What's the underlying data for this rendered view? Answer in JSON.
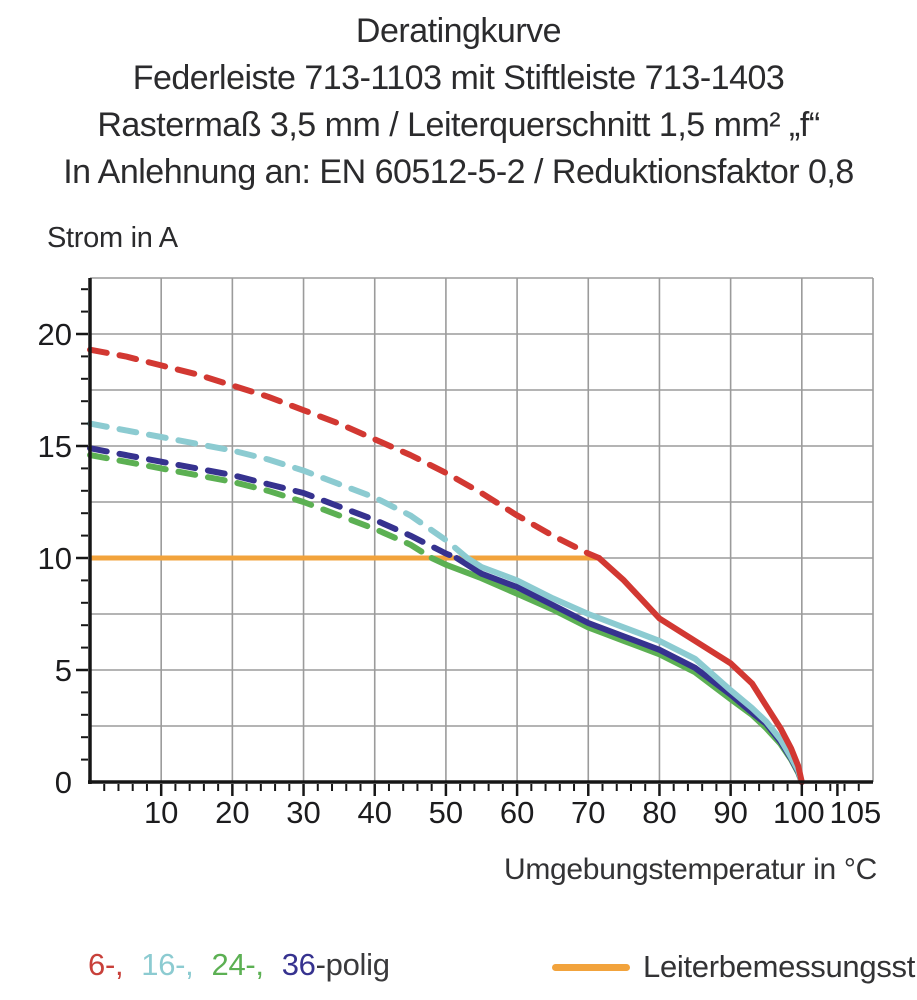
{
  "chart_data": {
    "type": "line",
    "title_lines": [
      "Deratingkurve",
      "Federleiste 713-1103 mit Stiftleiste 713-1403",
      "Rastermaß 3,5 mm / Leiterquerschnitt 1,5 mm² „f“",
      "In Anlehnung an: EN 60512-5-2 / Reduktionsfaktor 0,8"
    ],
    "x_axis": {
      "label": "Umgebungstemperatur in °C",
      "min": 0,
      "max": 110,
      "grid_step": 10,
      "minor_tick_step": 2,
      "major_tick_values": [
        10,
        20,
        30,
        40,
        50,
        60,
        70,
        80,
        90,
        100,
        105
      ],
      "tick_labels": [
        {
          "value": 10,
          "text": "10",
          "dx": 0
        },
        {
          "value": 20,
          "text": "20",
          "dx": 0
        },
        {
          "value": 30,
          "text": "30",
          "dx": 0
        },
        {
          "value": 40,
          "text": "40",
          "dx": 0
        },
        {
          "value": 50,
          "text": "50",
          "dx": 0
        },
        {
          "value": 60,
          "text": "60",
          "dx": 0
        },
        {
          "value": 70,
          "text": "70",
          "dx": 0
        },
        {
          "value": 80,
          "text": "80",
          "dx": 0
        },
        {
          "value": 90,
          "text": "90",
          "dx": 0
        },
        {
          "value": 100,
          "text": "100",
          "dx": -3
        },
        {
          "value": 105,
          "text": "105",
          "dx": 18
        }
      ]
    },
    "y_axis": {
      "label": "Strom in A",
      "min": 0,
      "max": 22.5,
      "grid_step": 2.5,
      "minor_tick_step": 1,
      "major_tick_values": [
        5,
        10,
        15,
        20
      ],
      "tick_labels": [
        {
          "value": 0,
          "text": "0"
        },
        {
          "value": 5,
          "text": "5"
        },
        {
          "value": 10,
          "text": "10"
        },
        {
          "value": 15,
          "text": "15"
        },
        {
          "value": 20,
          "text": "20"
        }
      ]
    },
    "ref_line": {
      "label": "Leiterbemessungsstrom",
      "color": "#F2A33C",
      "y": 10,
      "x_start": 0,
      "x_end": 71.5
    },
    "series": [
      {
        "name": "6-polig",
        "color": "#D23832",
        "dashed": [
          [
            0,
            19.3
          ],
          [
            5,
            19.0
          ],
          [
            10,
            18.6
          ],
          [
            15,
            18.2
          ],
          [
            20,
            17.7
          ],
          [
            25,
            17.2
          ],
          [
            30,
            16.6
          ],
          [
            35,
            16.0
          ],
          [
            40,
            15.3
          ],
          [
            45,
            14.6
          ],
          [
            50,
            13.8
          ],
          [
            55,
            12.9
          ],
          [
            60,
            11.9
          ],
          [
            65,
            11.0
          ],
          [
            70,
            10.2
          ],
          [
            71.5,
            10
          ]
        ],
        "solid": [
          [
            71.5,
            10
          ],
          [
            75,
            9.0
          ],
          [
            80,
            7.3
          ],
          [
            85,
            6.3
          ],
          [
            90,
            5.3
          ],
          [
            93,
            4.4
          ],
          [
            95,
            3.4
          ],
          [
            97,
            2.4
          ],
          [
            98.5,
            1.5
          ],
          [
            99.5,
            0.7
          ],
          [
            100,
            0
          ]
        ]
      },
      {
        "name": "16-polig",
        "color": "#8CCBD1",
        "dashed": [
          [
            0,
            16.0
          ],
          [
            5,
            15.7
          ],
          [
            10,
            15.4
          ],
          [
            15,
            15.1
          ],
          [
            20,
            14.8
          ],
          [
            25,
            14.4
          ],
          [
            30,
            13.9
          ],
          [
            35,
            13.3
          ],
          [
            40,
            12.7
          ],
          [
            45,
            11.9
          ],
          [
            50,
            10.8
          ],
          [
            53,
            10
          ]
        ],
        "solid": [
          [
            53,
            10
          ],
          [
            55,
            9.6
          ],
          [
            60,
            9.0
          ],
          [
            65,
            8.2
          ],
          [
            70,
            7.5
          ],
          [
            75,
            6.9
          ],
          [
            80,
            6.3
          ],
          [
            85,
            5.5
          ],
          [
            90,
            4.1
          ],
          [
            93,
            3.3
          ],
          [
            95,
            2.7
          ],
          [
            97,
            1.9
          ],
          [
            98.5,
            1.1
          ],
          [
            99.5,
            0.5
          ],
          [
            100,
            0
          ]
        ]
      },
      {
        "name": "24-polig",
        "color": "#5CB053",
        "dashed": [
          [
            0,
            14.6
          ],
          [
            5,
            14.3
          ],
          [
            10,
            14.0
          ],
          [
            15,
            13.7
          ],
          [
            20,
            13.4
          ],
          [
            25,
            13.0
          ],
          [
            30,
            12.5
          ],
          [
            35,
            11.9
          ],
          [
            40,
            11.3
          ],
          [
            45,
            10.6
          ],
          [
            48,
            10
          ]
        ],
        "solid": [
          [
            48,
            10
          ],
          [
            50,
            9.7
          ],
          [
            55,
            9.1
          ],
          [
            60,
            8.4
          ],
          [
            65,
            7.7
          ],
          [
            70,
            6.9
          ],
          [
            75,
            6.3
          ],
          [
            80,
            5.7
          ],
          [
            85,
            4.9
          ],
          [
            90,
            3.7
          ],
          [
            93,
            3.0
          ],
          [
            95,
            2.4
          ],
          [
            97,
            1.7
          ],
          [
            98.5,
            1.0
          ],
          [
            99.5,
            0.4
          ],
          [
            100,
            0
          ]
        ]
      },
      {
        "name": "36-polig",
        "color": "#36328F",
        "dashed": [
          [
            0,
            14.9
          ],
          [
            5,
            14.6
          ],
          [
            10,
            14.3
          ],
          [
            15,
            14.0
          ],
          [
            20,
            13.7
          ],
          [
            25,
            13.3
          ],
          [
            30,
            12.9
          ],
          [
            35,
            12.3
          ],
          [
            40,
            11.7
          ],
          [
            45,
            11.0
          ],
          [
            50,
            10.2
          ],
          [
            51.5,
            10
          ]
        ],
        "solid": [
          [
            51.5,
            10
          ],
          [
            55,
            9.3
          ],
          [
            60,
            8.7
          ],
          [
            65,
            7.9
          ],
          [
            70,
            7.1
          ],
          [
            75,
            6.5
          ],
          [
            80,
            5.9
          ],
          [
            85,
            5.1
          ],
          [
            90,
            3.9
          ],
          [
            93,
            3.1
          ],
          [
            95,
            2.6
          ],
          [
            97,
            1.8
          ],
          [
            98.5,
            1.05
          ],
          [
            99.5,
            0.45
          ],
          [
            100,
            0
          ]
        ]
      }
    ],
    "style": {
      "grid_color": "#9B9B9B",
      "axis_color": "#161616",
      "tick_label_color": "#1c1c1e",
      "line_width": 6,
      "dash_pattern": "17 13",
      "draw_order": [
        2,
        3,
        1,
        0
      ],
      "grid_on": true,
      "legend_position": "bottom"
    }
  },
  "legend": {
    "parts": [
      {
        "text": "6-,",
        "color": "#C8403A",
        "gap_before": false
      },
      {
        "text": "16-,",
        "color": "#8CCBD1",
        "gap_before": true
      },
      {
        "text": "24-,",
        "color": "#5CB053",
        "gap_before": true
      },
      {
        "text": "36",
        "color": "#36328F",
        "gap_before": true
      },
      {
        "text": "-polig",
        "color": "#3A3A3C",
        "gap_before": false
      }
    ]
  }
}
